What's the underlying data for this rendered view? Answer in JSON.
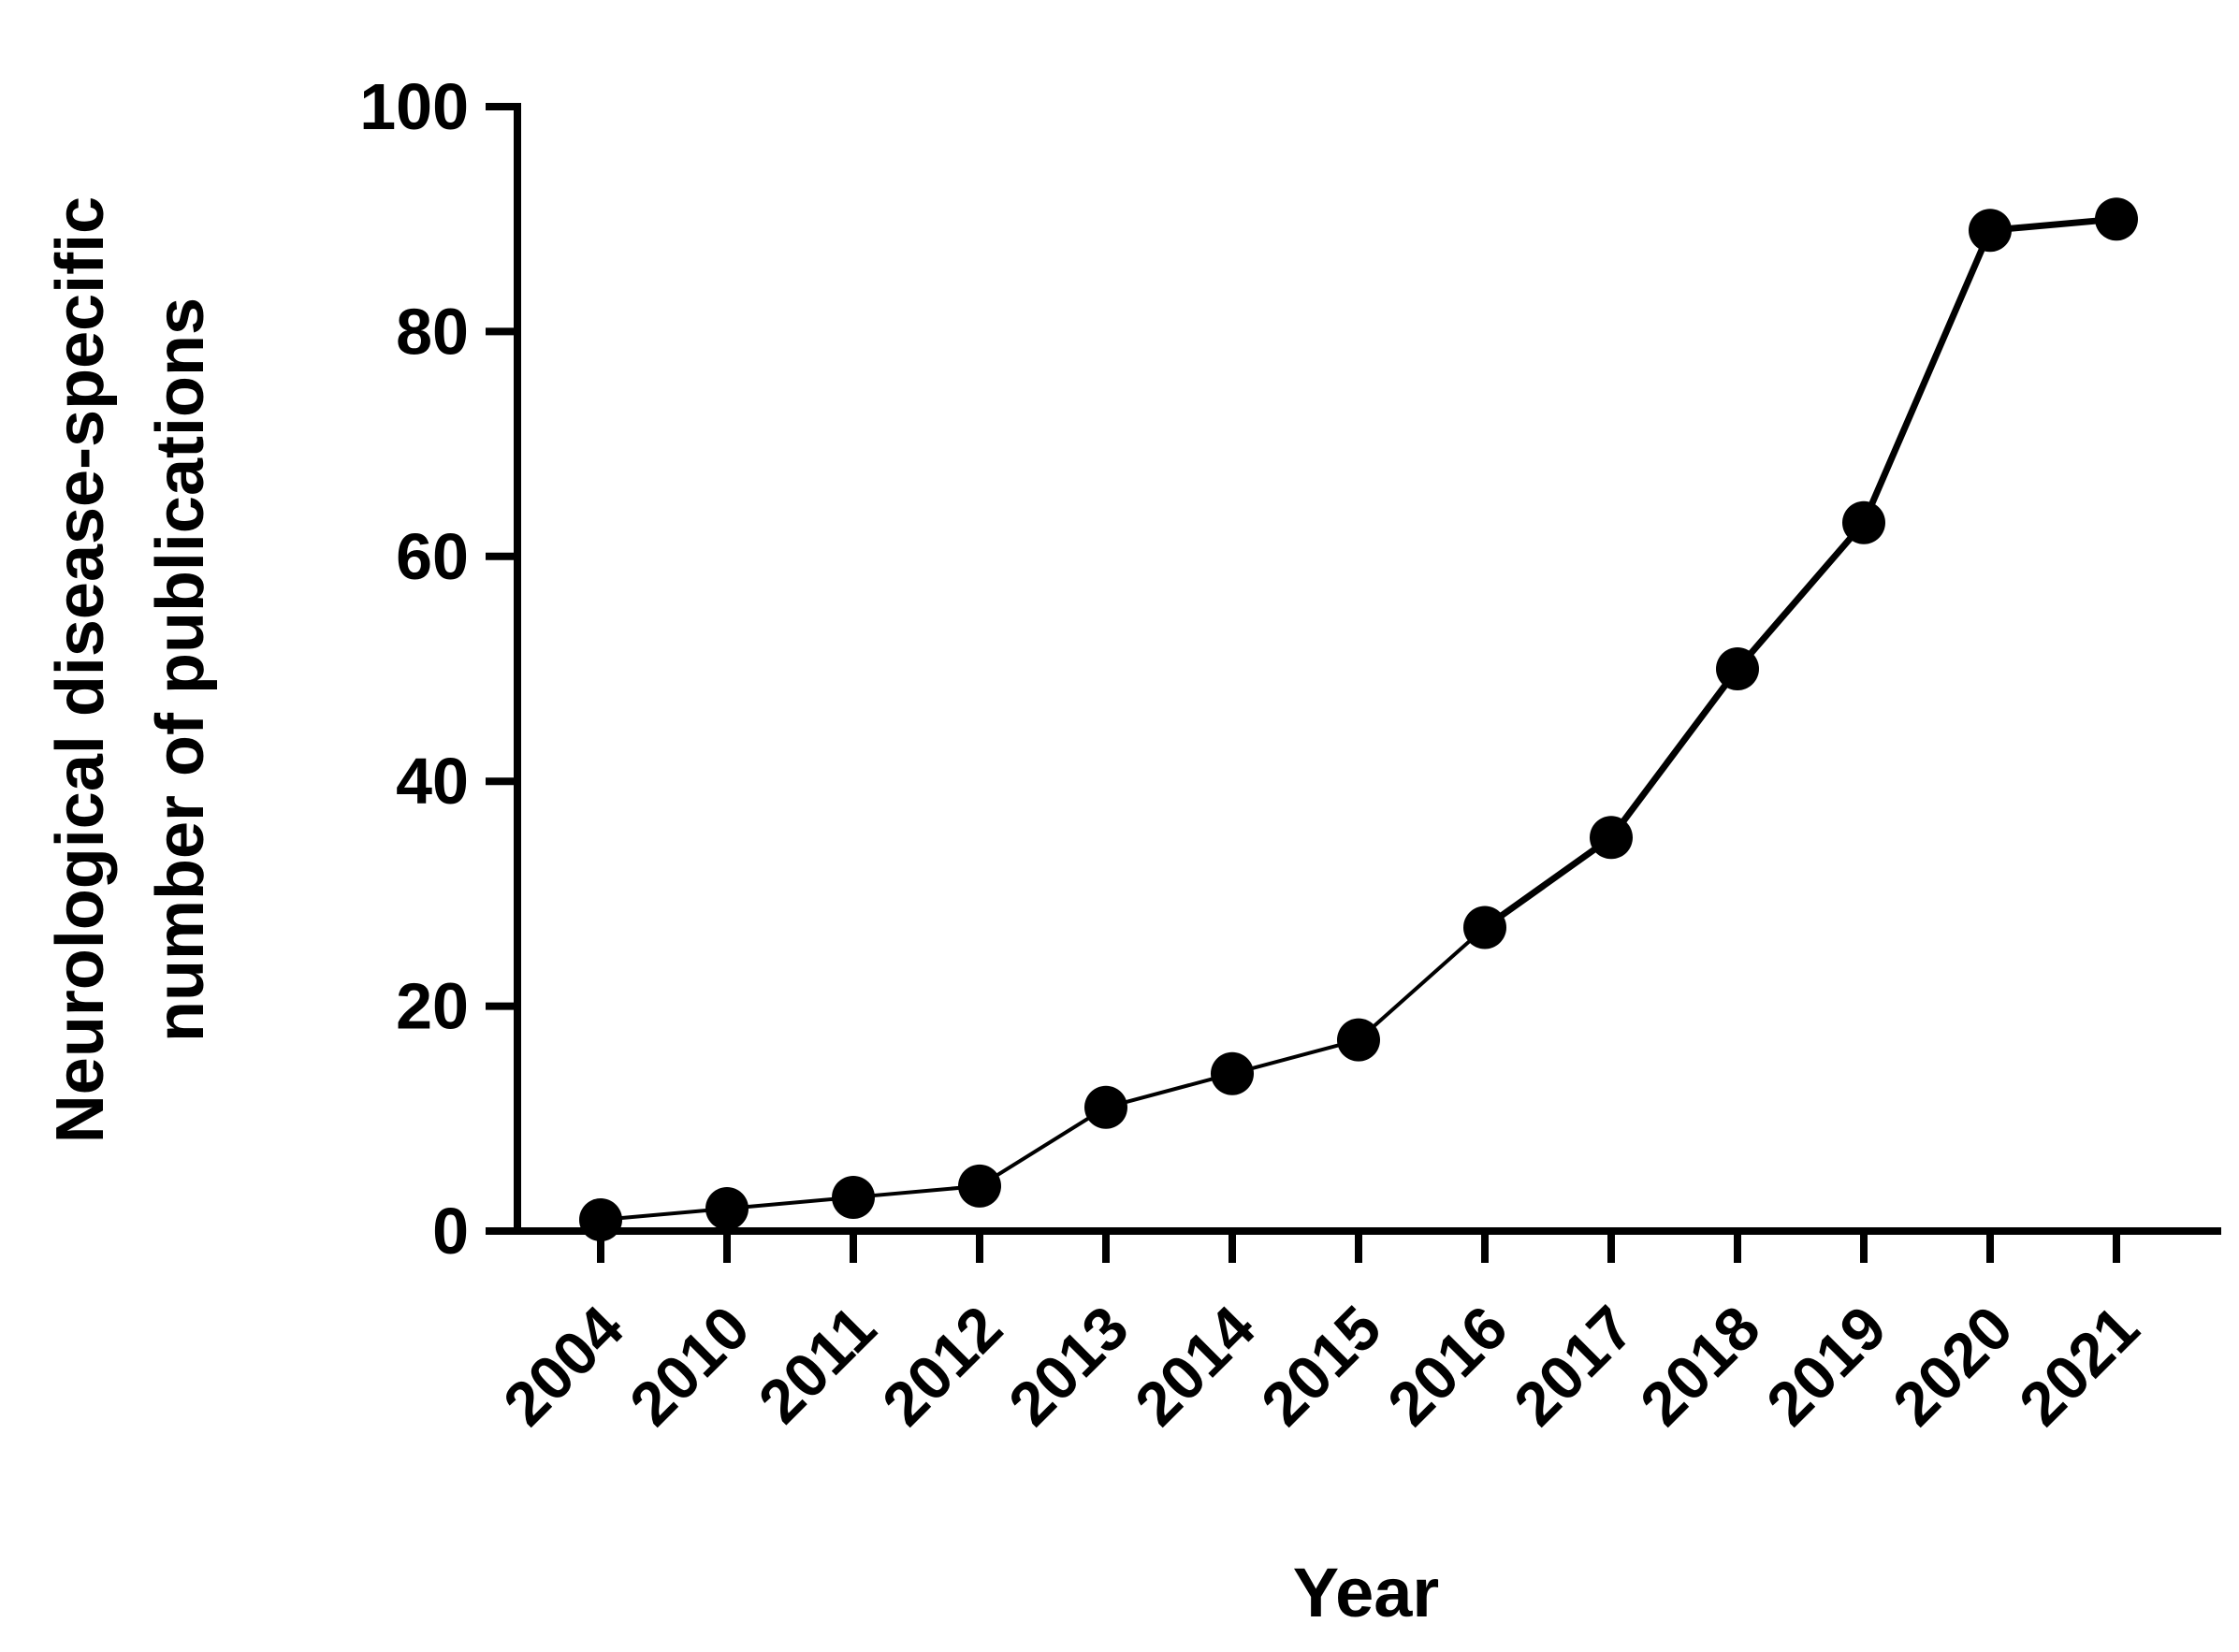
{
  "chart_data": {
    "type": "line",
    "title": "",
    "xlabel": "Year",
    "ylabel_lines": [
      "Neurological disease-specific",
      "number of publications"
    ],
    "categories": [
      "2004",
      "2010",
      "2011",
      "2012",
      "2013",
      "2014",
      "2015",
      "2016",
      "2017",
      "2018",
      "2019",
      "2020",
      "2021"
    ],
    "series": [
      {
        "values": [
          1,
          2,
          3,
          4,
          11,
          14,
          17,
          27,
          35,
          50,
          63,
          89,
          90
        ]
      }
    ],
    "ylim": [
      0,
      100
    ],
    "yticks": [
      "0",
      "20",
      "40",
      "60",
      "80",
      "100"
    ],
    "grid": false,
    "legend": "none",
    "colors": {
      "line": "#000000",
      "marker": "#000000",
      "axis": "#000000"
    }
  }
}
